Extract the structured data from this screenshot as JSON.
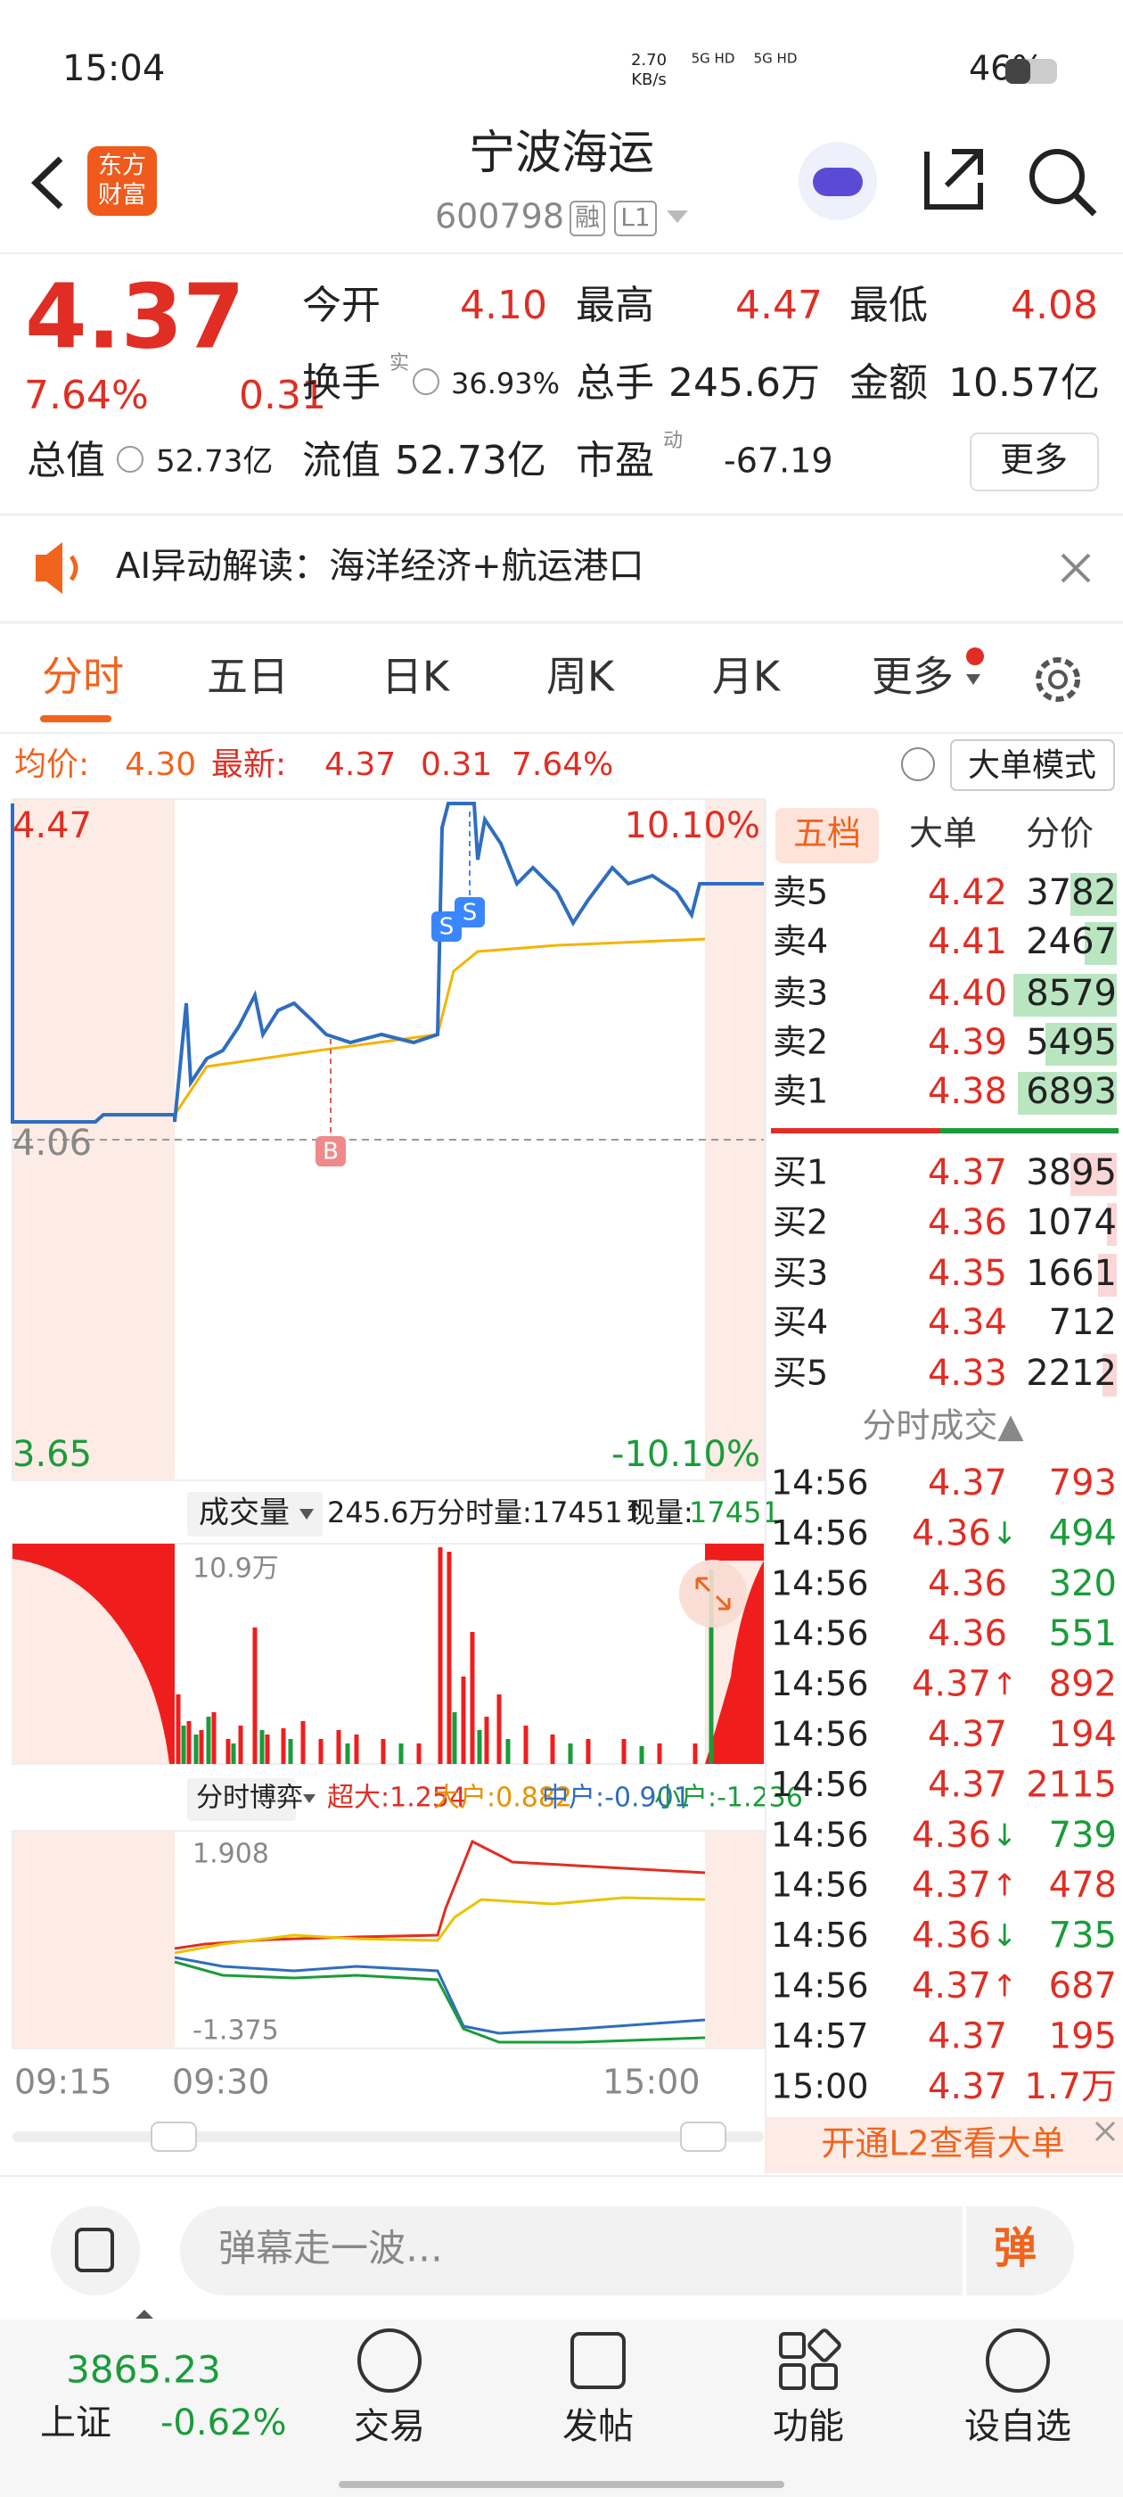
{
  "status_bar": {
    "time": "15:04",
    "net_speed": [
      "2.70",
      "KB/s"
    ],
    "network": [
      "5G HD",
      "5G HD"
    ],
    "battery": "46%"
  },
  "header": {
    "logo": [
      "东方",
      "财富"
    ],
    "title": "宁波海运",
    "code": "600798",
    "badges": [
      "融",
      "L1"
    ]
  },
  "quote": {
    "price": "4.37",
    "change_pct": "7.64%",
    "change": "0.31",
    "more": "更多",
    "fields": [
      {
        "label": "今开",
        "value": "4.10"
      },
      {
        "label": "最高",
        "value": "4.47"
      },
      {
        "label": "最低",
        "value": "4.08"
      },
      {
        "label": "换手",
        "sup": "实",
        "value": "36.93%"
      },
      {
        "label": "总手",
        "value": "245.6万"
      },
      {
        "label": "金额",
        "value": "10.57亿"
      },
      {
        "label": "总值",
        "value": "52.73亿"
      },
      {
        "label": "流值",
        "value": "52.73亿"
      },
      {
        "label": "市盈",
        "sup": "动",
        "value": "-67.19"
      }
    ]
  },
  "ai_banner": "AI异动解读：海洋经济+航运港口",
  "tabs": [
    "分时",
    "五日",
    "日K",
    "周K",
    "月K",
    "更多"
  ],
  "info_bar": {
    "avg_label": "均价:",
    "avg": "4.30",
    "last_label": "最新:",
    "last": "4.37",
    "change": "0.31",
    "change_pct": "7.64%",
    "mode": "大单模式"
  },
  "chart": {
    "high": "4.47",
    "high_pct": "10.10%",
    "prev_close": "4.06",
    "low": "3.65",
    "low_pct": "-10.10%",
    "markers": [
      "S",
      "S",
      "B"
    ]
  },
  "volume": {
    "selector": "成交量",
    "total": "245.6万",
    "minute_label": "分时量:17451↑",
    "current_label": "现量:",
    "current": "17451",
    "max": "10.9万"
  },
  "game": {
    "selector": "分时博弈",
    "items": [
      "超大:1.254",
      "大户:0.882",
      "中户:-0.901",
      "小户:-1.236"
    ],
    "max": "1.908",
    "min": "-1.375"
  },
  "time_axis": [
    "09:15",
    "09:30",
    "15:00"
  ],
  "order_book": {
    "tabs": [
      "五档",
      "大单",
      "分价"
    ],
    "asks": [
      {
        "label": "卖5",
        "price": "4.42",
        "volume": "3782"
      },
      {
        "label": "卖4",
        "price": "4.41",
        "volume": "2467"
      },
      {
        "label": "卖3",
        "price": "4.40",
        "volume": "8579"
      },
      {
        "label": "卖2",
        "price": "4.39",
        "volume": "5495"
      },
      {
        "label": "卖1",
        "price": "4.38",
        "volume": "6893"
      }
    ],
    "bids": [
      {
        "label": "买1",
        "price": "4.37",
        "volume": "3895"
      },
      {
        "label": "买2",
        "price": "4.36",
        "volume": "1074"
      },
      {
        "label": "买3",
        "price": "4.35",
        "volume": "1661"
      },
      {
        "label": "买4",
        "price": "4.34",
        "volume": "712"
      },
      {
        "label": "买5",
        "price": "4.33",
        "volume": "2212"
      }
    ]
  },
  "trades": {
    "title": "分时成交▲",
    "rows": [
      {
        "time": "14:56",
        "price": "4.37",
        "volume": "793",
        "color": "#e02e24"
      },
      {
        "time": "14:56",
        "price": "4.36",
        "arrow": "↓",
        "volume": "494",
        "color": "#1a9c3a"
      },
      {
        "time": "14:56",
        "price": "4.36",
        "volume": "320",
        "color": "#1a9c3a"
      },
      {
        "time": "14:56",
        "price": "4.36",
        "volume": "551",
        "color": "#1a9c3a"
      },
      {
        "time": "14:56",
        "price": "4.37",
        "arrow": "↑",
        "volume": "892",
        "color": "#e02e24"
      },
      {
        "time": "14:56",
        "price": "4.37",
        "volume": "194",
        "color": "#e02e24"
      },
      {
        "time": "14:56",
        "price": "4.37",
        "volume": "2115",
        "color": "#e02e24"
      },
      {
        "time": "14:56",
        "price": "4.36",
        "arrow": "↓",
        "volume": "739",
        "color": "#1a9c3a"
      },
      {
        "time": "14:56",
        "price": "4.37",
        "arrow": "↑",
        "volume": "478",
        "color": "#e02e24"
      },
      {
        "time": "14:56",
        "price": "4.36",
        "arrow": "↓",
        "volume": "735",
        "color": "#1a9c3a"
      },
      {
        "time": "14:56",
        "price": "4.37",
        "arrow": "↑",
        "volume": "687",
        "color": "#e02e24"
      },
      {
        "time": "14:57",
        "price": "4.37",
        "volume": "195",
        "color": "#e02e24"
      },
      {
        "time": "15:00",
        "price": "4.37",
        "volume": "1.7万",
        "color": "#e02e24"
      }
    ]
  },
  "l2_banner": "开通L2查看大单",
  "comment": {
    "placeholder": "弹幕走一波…",
    "button": "弹"
  },
  "nav": {
    "index_value": "3865.23",
    "index_name": "上证",
    "index_change": "-0.62%",
    "items": [
      "交易",
      "发帖",
      "功能",
      "设自选"
    ]
  }
}
